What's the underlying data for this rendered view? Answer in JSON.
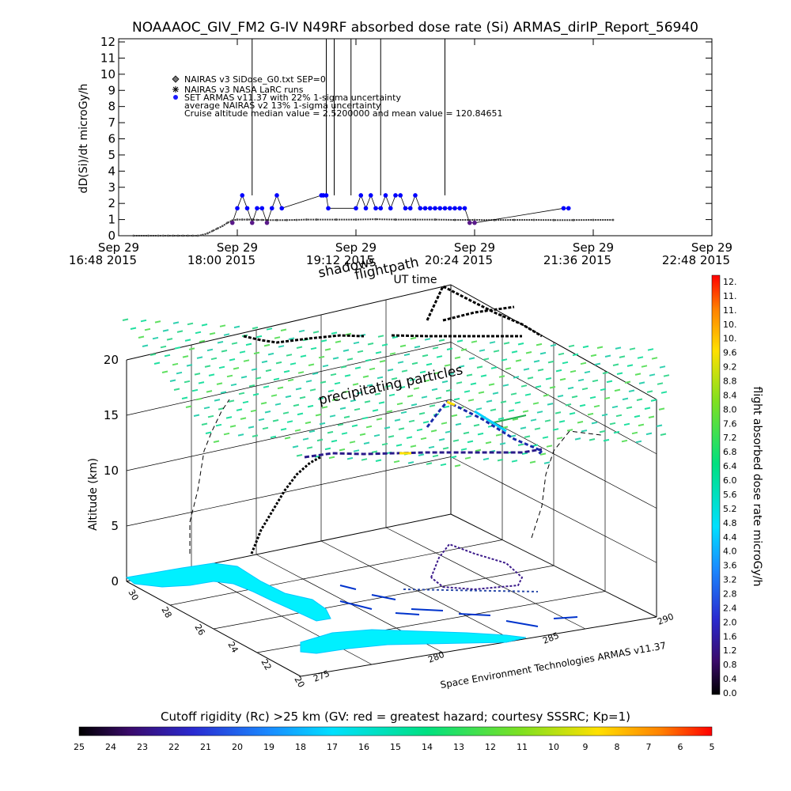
{
  "title": "NOAAAOC_GIV_FM2 G-IV   N49RF  absorbed dose rate (Si) ARMAS_dirIP_Report_56940",
  "chart_data": [
    {
      "type": "scatter",
      "title": "NOAAAOC_GIV_FM2 G-IV   N49RF  absorbed dose rate (Si) ARMAS_dirIP_Report_56940",
      "ylabel": "dD(Si)/dt microGy/h",
      "xlabel": "UT time",
      "ylim": [
        0,
        12
      ],
      "yticks": [
        "0",
        "1",
        "2",
        "3",
        "4",
        "5",
        "6",
        "7",
        "8",
        "9",
        "10",
        "11",
        "12"
      ],
      "xticks": [
        {
          "date": "Sep 29",
          "time": "16:48 2015"
        },
        {
          "date": "Sep 29",
          "time": "18:00 2015"
        },
        {
          "date": "Sep 29",
          "time": "19:12 2015"
        },
        {
          "date": "Sep 29",
          "time": "20:24 2015"
        },
        {
          "date": "Sep 29",
          "time": "21:36 2015"
        },
        {
          "date": "Sep 29",
          "time": "22:48 2015"
        }
      ],
      "legend": [
        {
          "symbol": "diamond",
          "text": "NAIRAS v3 SiDose_G0.txt SEP=0"
        },
        {
          "symbol": "cross",
          "text": "NAIRAS v3 NASA LaRC runs"
        },
        {
          "symbol": "dot",
          "text": "SET ARMAS v11.37 with 22% 1-sigma uncertainty"
        },
        {
          "symbol": "none",
          "text": "average NAIRAS v2 13% 1-sigma uncertainty"
        },
        {
          "symbol": "none",
          "text": "Cruise altitude median value = 2.5200000 and mean value = 120.84651"
        }
      ],
      "series": [
        {
          "name": "NAIRAS v3 SiDose_G0.txt SEP=0",
          "color": "#000000",
          "x": [
            0.15,
            0.3,
            0.4,
            0.45,
            0.5,
            0.55,
            0.6,
            0.65,
            0.7,
            0.75,
            0.8,
            0.85,
            0.9,
            0.95,
            1.0,
            1.05,
            1.1,
            1.15,
            1.2,
            1.25,
            1.3,
            1.35,
            1.4,
            1.45,
            1.5,
            1.6,
            1.7,
            1.8,
            1.9,
            2.0,
            2.2,
            2.4,
            2.6,
            2.8,
            3.0,
            3.2,
            3.4,
            3.6,
            3.8,
            4.0,
            4.2,
            4.4,
            4.6,
            4.8,
            5.0
          ],
          "y": [
            0,
            0,
            0,
            0,
            0,
            0,
            0,
            0,
            0,
            0,
            0,
            0.05,
            0.15,
            0.3,
            0.45,
            0.6,
            0.8,
            0.95,
            1.0,
            1.0,
            1.0,
            1.0,
            0.98,
            0.98,
            0.97,
            0.97,
            0.97,
            0.98,
            1.0,
            1.0,
            1.0,
            1.0,
            1.02,
            1.0,
            1.0,
            1.0,
            0.98,
            0.98,
            0.97,
            0.98,
            0.98,
            0.97,
            0.97,
            0.98,
            0.98
          ]
        },
        {
          "name": "SET ARMAS v11.37 with 22% 1-sigma uncertainty",
          "color": "#0000ff",
          "x": [
            1.15,
            1.2,
            1.25,
            1.3,
            1.35,
            1.4,
            1.45,
            1.5,
            1.55,
            1.6,
            1.65,
            2.05,
            2.07,
            2.1,
            2.12,
            2.4,
            2.45,
            2.5,
            2.55,
            2.6,
            2.65,
            2.7,
            2.75,
            2.8,
            2.85,
            2.9,
            2.95,
            3.0,
            3.05,
            3.1,
            3.15,
            3.2,
            3.25,
            3.3,
            3.35,
            3.4,
            3.45,
            3.5,
            3.55,
            3.6,
            4.5,
            4.55
          ],
          "y": [
            0.8,
            1.7,
            2.5,
            1.7,
            0.8,
            1.7,
            1.7,
            0.8,
            1.7,
            2.5,
            1.7,
            2.5,
            2.5,
            2.5,
            1.7,
            1.7,
            2.5,
            1.7,
            2.5,
            1.7,
            1.7,
            2.5,
            1.7,
            2.5,
            2.5,
            1.7,
            1.7,
            2.5,
            1.7,
            1.7,
            1.7,
            1.7,
            1.7,
            1.7,
            1.7,
            1.7,
            1.7,
            1.7,
            0.8,
            0.8,
            1.7,
            1.7
          ]
        }
      ],
      "spikes_x": [
        1.35,
        2.1,
        2.18,
        2.35,
        2.65,
        3.3
      ]
    },
    {
      "type": "scatter",
      "labels": [
        "flightpath",
        "shadows",
        "precipitating particles"
      ],
      "zlabel": "Altitude (km)",
      "zticks": [
        "0",
        "5",
        "10",
        "15",
        "20"
      ],
      "lat_ticks": [
        "30",
        "28",
        "26",
        "24",
        "22",
        "20"
      ],
      "lon_ticks": [
        "275",
        "280",
        "285",
        "290"
      ],
      "credit": "Space Environment Technologies ARMAS v11.37"
    },
    {
      "type": "heatmap",
      "title": "flight absorbed dose rate microGy/h",
      "ticks": [
        "12.",
        "11.",
        "11.",
        "10.",
        "10.",
        "9.6",
        "9.2",
        "8.8",
        "8.4",
        "8.0",
        "7.6",
        "7.2",
        "6.8",
        "6.4",
        "6.0",
        "5.6",
        "5.2",
        "4.8",
        "4.4",
        "4.0",
        "3.6",
        "3.2",
        "2.8",
        "2.4",
        "2.0",
        "1.6",
        "1.2",
        "0.8",
        "0.4",
        "0.0"
      ]
    },
    {
      "type": "heatmap",
      "title": "Cutoff rigidity (Rc) >25 km (GV: red = greatest hazard; courtesy SSSRC; Kp=1)",
      "ticks": [
        "25",
        "24",
        "23",
        "22",
        "21",
        "20",
        "19",
        "18",
        "17",
        "16",
        "15",
        "14",
        "13",
        "12",
        "11",
        "10",
        "9",
        "8",
        "7",
        "6",
        "5"
      ]
    }
  ]
}
